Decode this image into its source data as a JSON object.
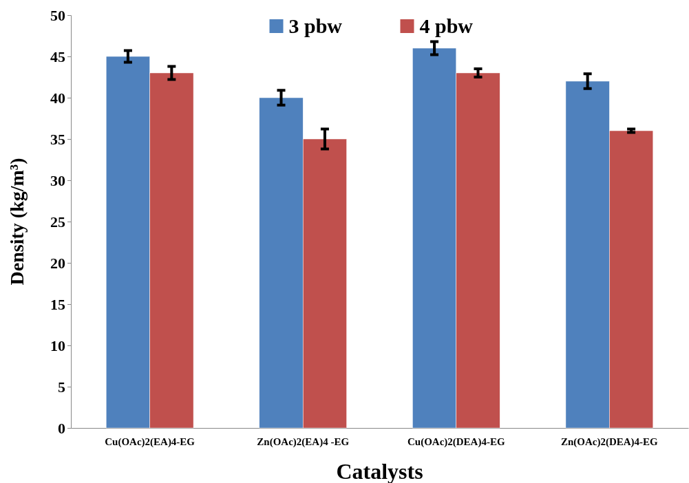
{
  "chart_data": {
    "type": "bar",
    "xlabel": "Catalysts",
    "ylabel": "Density (kg/m³)",
    "categories": [
      "Cu(OAc)2(EA)4-EG",
      "Zn(OAc)2(EA)4 -EG",
      "Cu(OAc)2(DEA)4-EG",
      "Zn(OAc)2(DEA)4-EG"
    ],
    "series": [
      {
        "name": "3 pbw",
        "color": "#4f81bd",
        "values": [
          45,
          40,
          46,
          42
        ],
        "errors": [
          0.7,
          0.9,
          0.8,
          0.9
        ]
      },
      {
        "name": "4 pbw",
        "color": "#c0504d",
        "values": [
          43,
          35,
          43,
          36
        ],
        "errors": [
          0.8,
          1.2,
          0.5,
          0.2
        ]
      }
    ],
    "ylim": [
      0,
      50
    ],
    "yticks": [
      0,
      5,
      10,
      15,
      20,
      25,
      30,
      35,
      40,
      45,
      50
    ],
    "grid": false,
    "legend": "top"
  }
}
